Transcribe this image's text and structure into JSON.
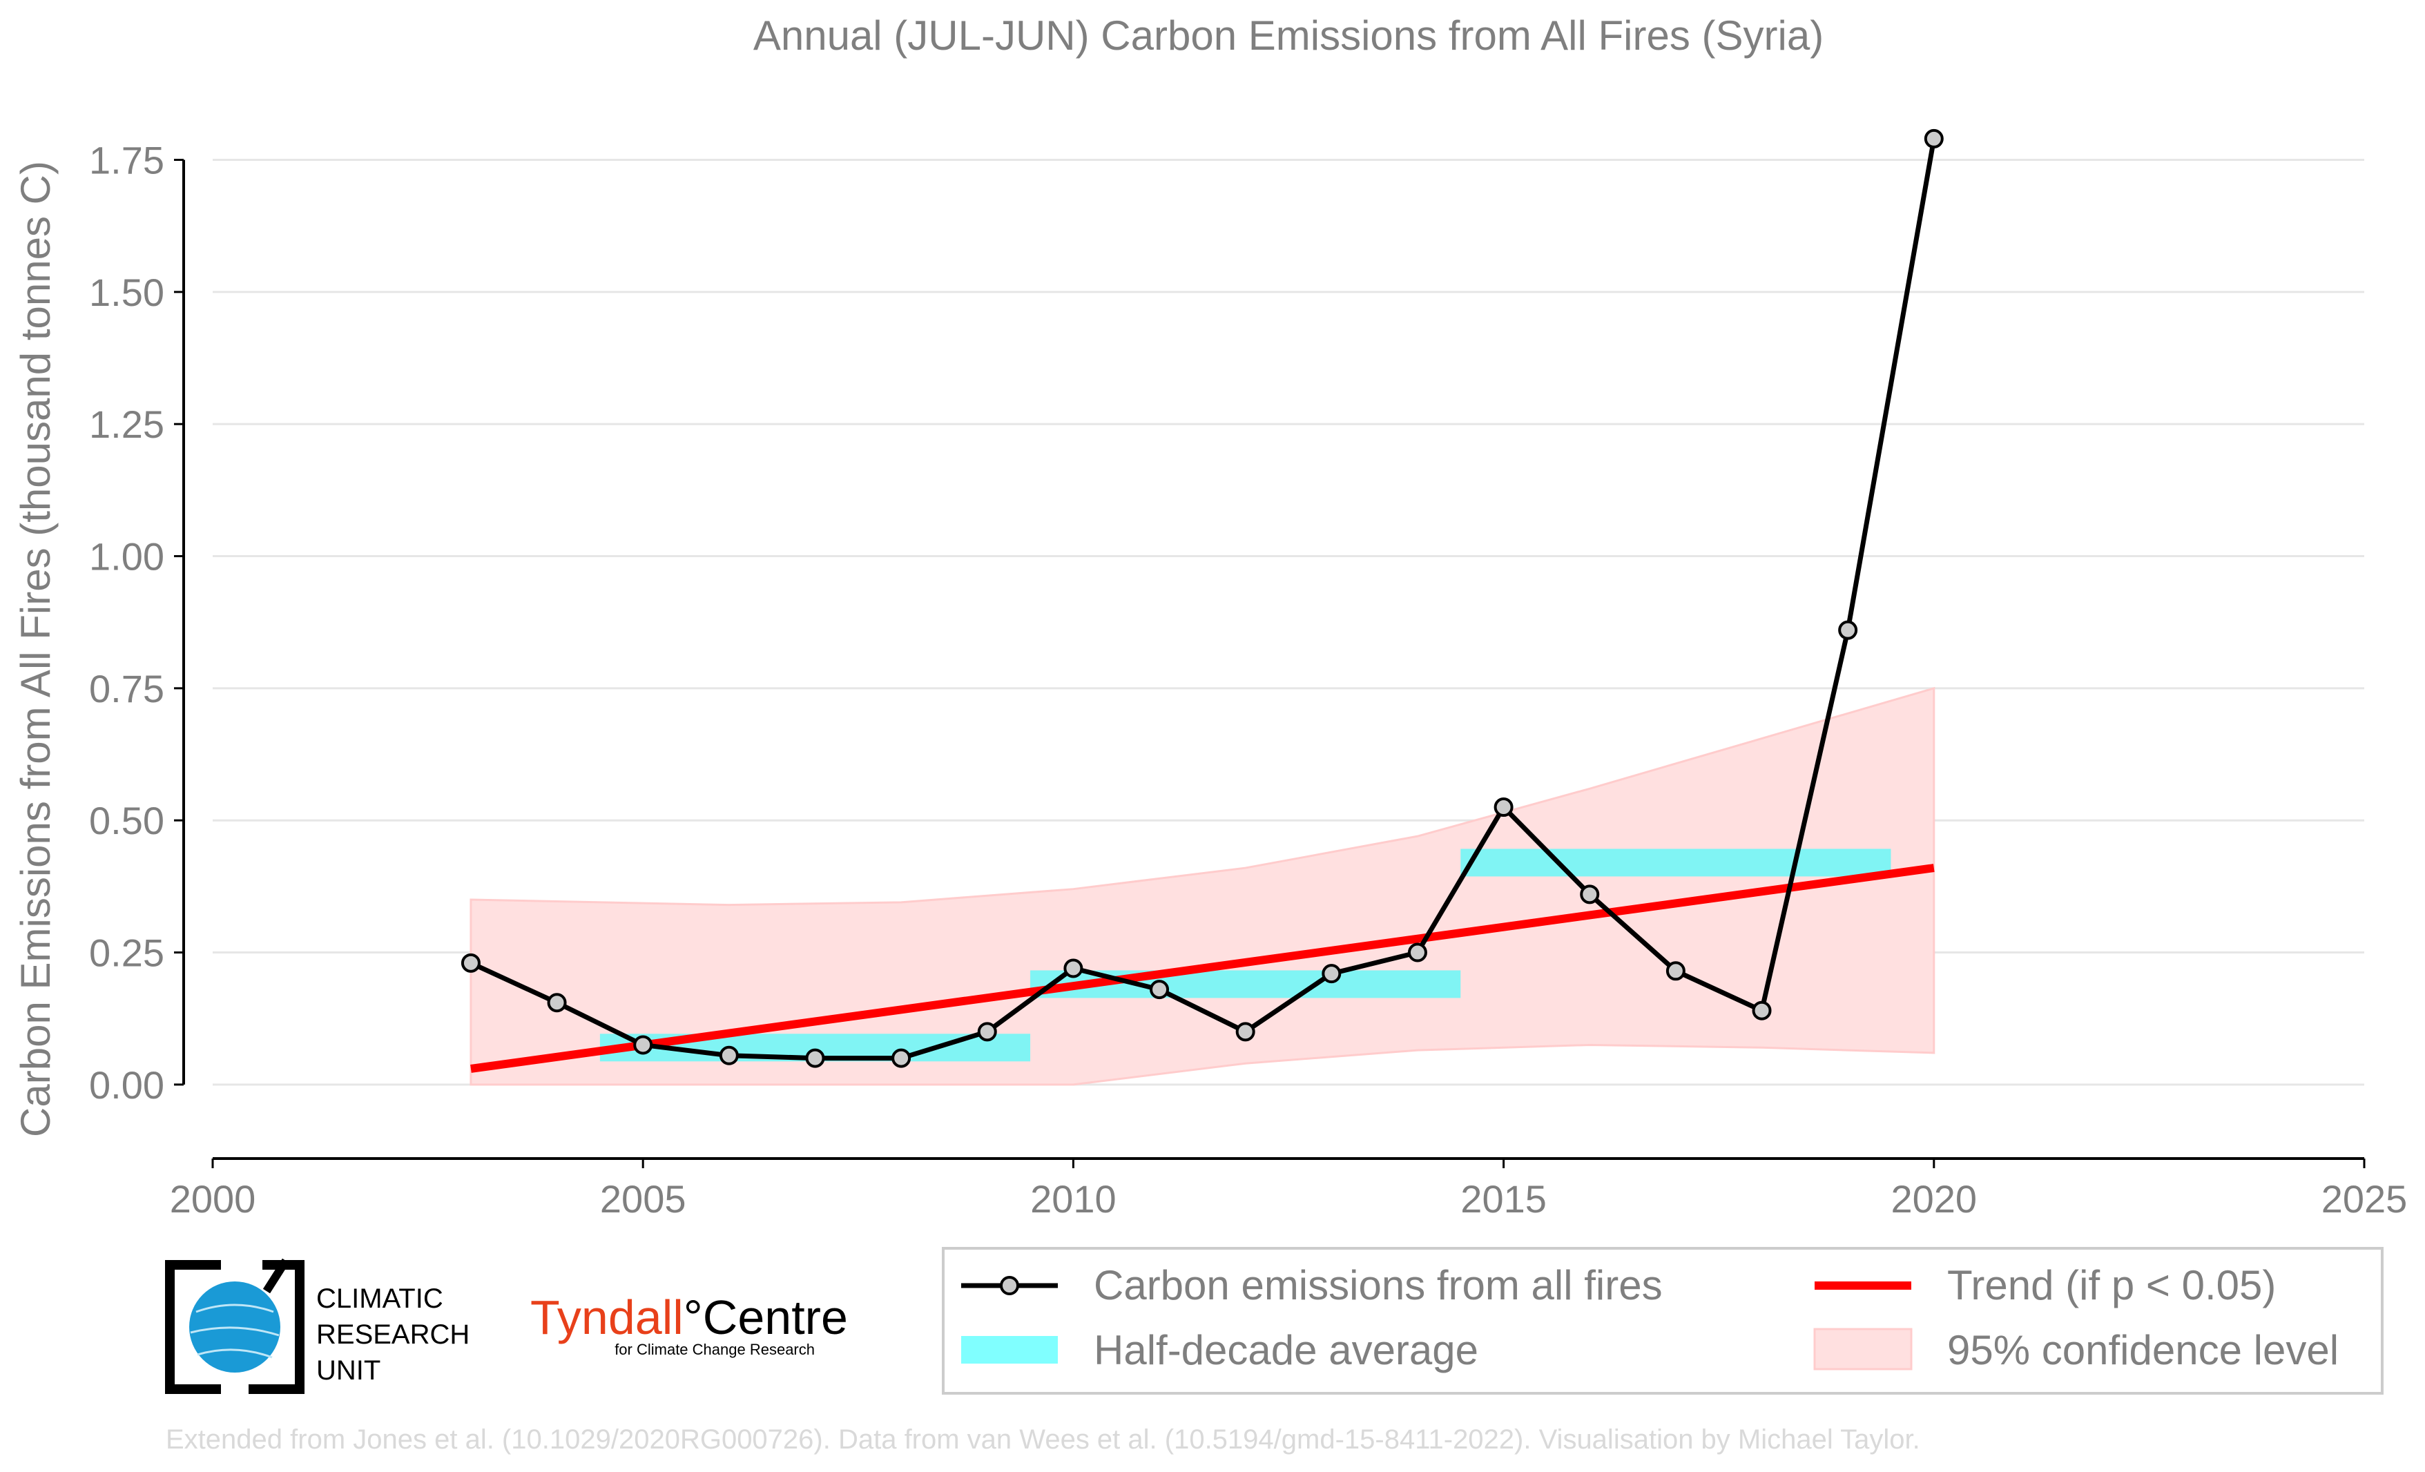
{
  "chart_data": {
    "type": "line",
    "title": "Annual (JUL-JUN) Carbon Emissions from All Fires (Syria)",
    "xlabel": "",
    "ylabel": "Carbon Emissions from All Fires (thousand tonnes C)",
    "xlim": [
      2000,
      2025
    ],
    "ylim": [
      -0.14,
      1.85
    ],
    "x_ticks": [
      2000,
      2005,
      2010,
      2015,
      2020,
      2025
    ],
    "x_tick_labels": [
      "2000",
      "2005",
      "2010",
      "2015",
      "2020",
      "2025"
    ],
    "y_ticks": [
      0.0,
      0.25,
      0.5,
      0.75,
      1.0,
      1.25,
      1.5,
      1.75
    ],
    "y_tick_labels": [
      "0.00",
      "0.25",
      "0.50",
      "0.75",
      "1.00",
      "1.25",
      "1.50",
      "1.75"
    ],
    "grid": "horizontal",
    "legend_position": "bottom-right",
    "series": [
      {
        "name": "Carbon emissions from all fires",
        "color": "#000000",
        "marker_color": "#cccccc",
        "x": [
          2003,
          2004,
          2005,
          2006,
          2007,
          2008,
          2009,
          2010,
          2011,
          2012,
          2013,
          2014,
          2015,
          2016,
          2017,
          2018,
          2019,
          2020
        ],
        "y": [
          0.23,
          0.155,
          0.075,
          0.055,
          0.05,
          0.05,
          0.1,
          0.22,
          0.18,
          0.1,
          0.21,
          0.25,
          0.525,
          0.36,
          0.215,
          0.14,
          0.86,
          1.79
        ]
      },
      {
        "name": "Trend (if p < 0.05)",
        "color": "#ff0000",
        "x": [
          2003,
          2020
        ],
        "y": [
          0.03,
          0.41
        ]
      },
      {
        "name": "Half-decade average",
        "color": "#80ffff",
        "segments": [
          {
            "x_start": 2004.5,
            "x_end": 2009.5,
            "y": 0.07
          },
          {
            "x_start": 2009.5,
            "x_end": 2014.5,
            "y": 0.19
          },
          {
            "x_start": 2014.5,
            "x_end": 2019.5,
            "y": 0.42
          }
        ]
      },
      {
        "name": "95% confidence level",
        "color": "#ffc0c0",
        "x": [
          2003,
          2006,
          2008,
          2010,
          2012,
          2014,
          2016,
          2018,
          2020
        ],
        "upper": [
          0.35,
          0.34,
          0.345,
          0.37,
          0.41,
          0.47,
          0.56,
          0.655,
          0.75
        ],
        "lower": [
          0.0,
          0.0,
          0.0,
          0.0,
          0.04,
          0.065,
          0.075,
          0.07,
          0.06
        ]
      }
    ]
  },
  "logos": {
    "cru_line1": "CLIMATIC",
    "cru_line2": "RESEARCH",
    "cru_line3": "UNIT",
    "tyndall_red": "Tyndall",
    "tyndall_degree": "°",
    "tyndall_black": "Centre",
    "tyndall_sub": "for Climate Change Research"
  },
  "footer": {
    "credit": "Extended from Jones et al. (10.1029/2020RG000726). Data from van Wees et al. (10.5194/gmd-15-8411-2022). Visualisation by Michael Taylor."
  }
}
